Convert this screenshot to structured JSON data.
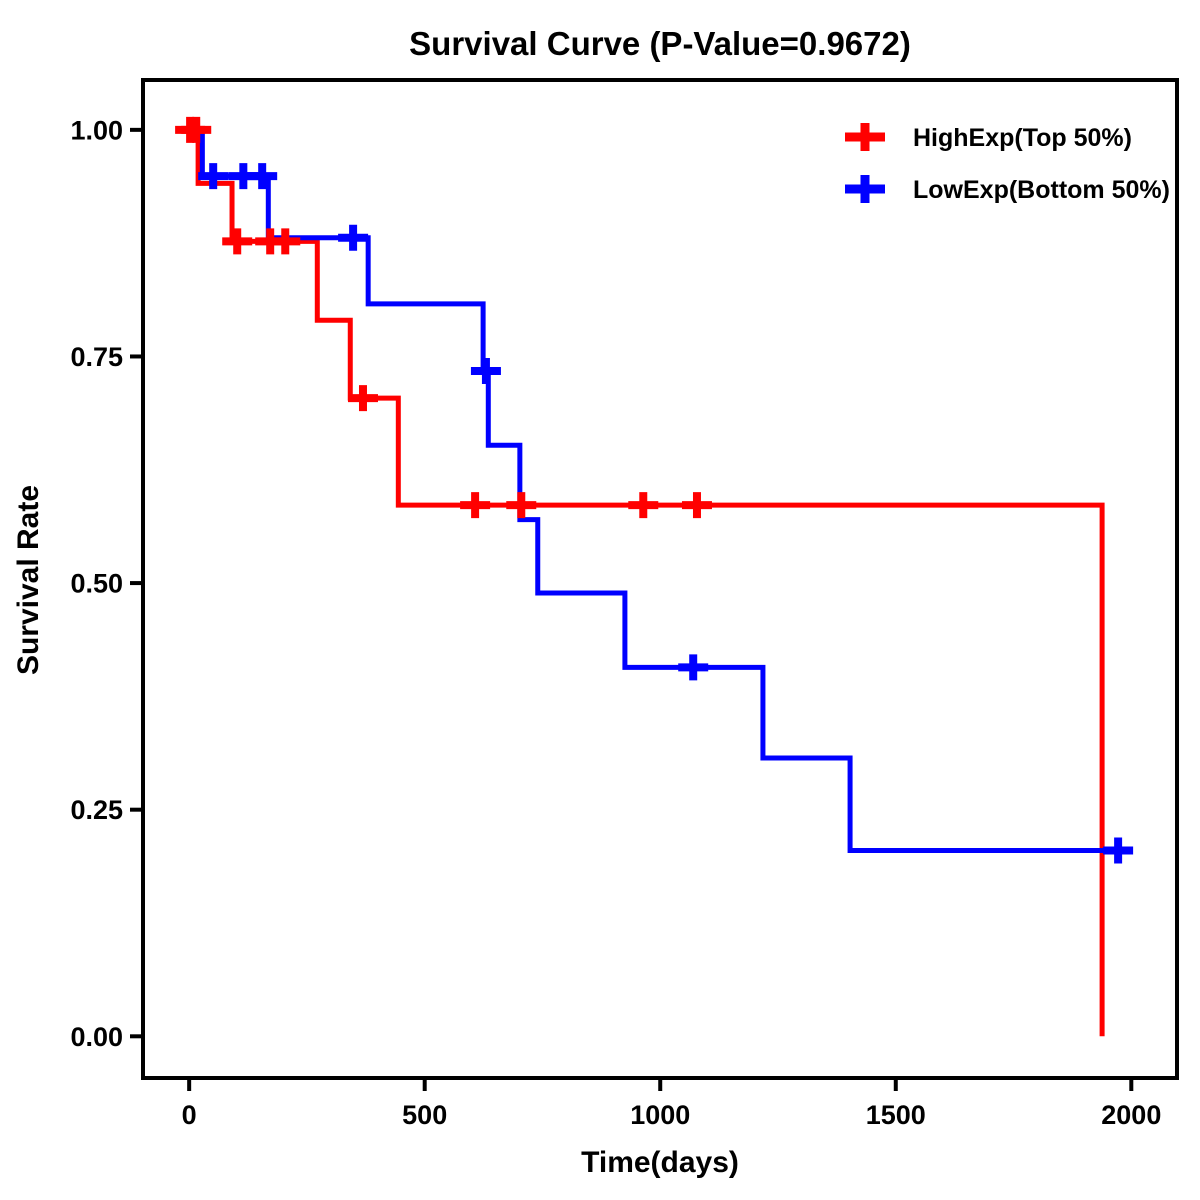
{
  "chart_data": {
    "type": "line",
    "subtype": "kaplan-meier-step-survival",
    "title": "Survival Curve (P-Value=0.9672)",
    "p_value": "0.9672",
    "xlabel": "Time(days)",
    "ylabel": "Survival Rate",
    "x_ticks": [
      0,
      500,
      1000,
      1500,
      2000
    ],
    "y_tick_labels": [
      "1.00",
      "0.75",
      "0.50",
      "0.25",
      "0.00"
    ],
    "y_tick_values": [
      1.0,
      0.75,
      0.5,
      0.25,
      0.0
    ],
    "xlim": [
      -98,
      2097
    ],
    "ylim": [
      -0.046,
      1.055
    ],
    "grid": false,
    "legend_position": "top-right",
    "axis_color": "#000000",
    "background_color": "#ffffff",
    "series": [
      {
        "name": "HighExp(Top 50%)",
        "color": "#ff0000",
        "steps": [
          [
            0,
            1.0
          ],
          [
            19,
            0.941
          ],
          [
            91,
            0.877
          ],
          [
            272,
            0.79
          ],
          [
            342,
            0.704
          ],
          [
            444,
            0.586
          ],
          [
            1938,
            0.0
          ]
        ],
        "end_time": 1938,
        "censors": [
          [
            2,
            1.0
          ],
          [
            15,
            1.0
          ],
          [
            102,
            0.877
          ],
          [
            172,
            0.877
          ],
          [
            204,
            0.877
          ],
          [
            369,
            0.704
          ],
          [
            607,
            0.586
          ],
          [
            705,
            0.586
          ],
          [
            964,
            0.586
          ],
          [
            1078,
            0.586
          ]
        ]
      },
      {
        "name": "LowExp(Bottom 50%)",
        "color": "#0000ff",
        "steps": [
          [
            0,
            1.0
          ],
          [
            28,
            0.949
          ],
          [
            168,
            0.881
          ],
          [
            380,
            0.808
          ],
          [
            624,
            0.734
          ],
          [
            635,
            0.652
          ],
          [
            702,
            0.57
          ],
          [
            740,
            0.489
          ],
          [
            925,
            0.407
          ],
          [
            1218,
            0.307
          ],
          [
            1403,
            0.205
          ]
        ],
        "end_time": 2002,
        "censors": [
          [
            51,
            0.949
          ],
          [
            115,
            0.949
          ],
          [
            155,
            0.949
          ],
          [
            348,
            0.881
          ],
          [
            630,
            0.734
          ],
          [
            1070,
            0.407
          ],
          [
            1972,
            0.205
          ]
        ]
      }
    ]
  }
}
